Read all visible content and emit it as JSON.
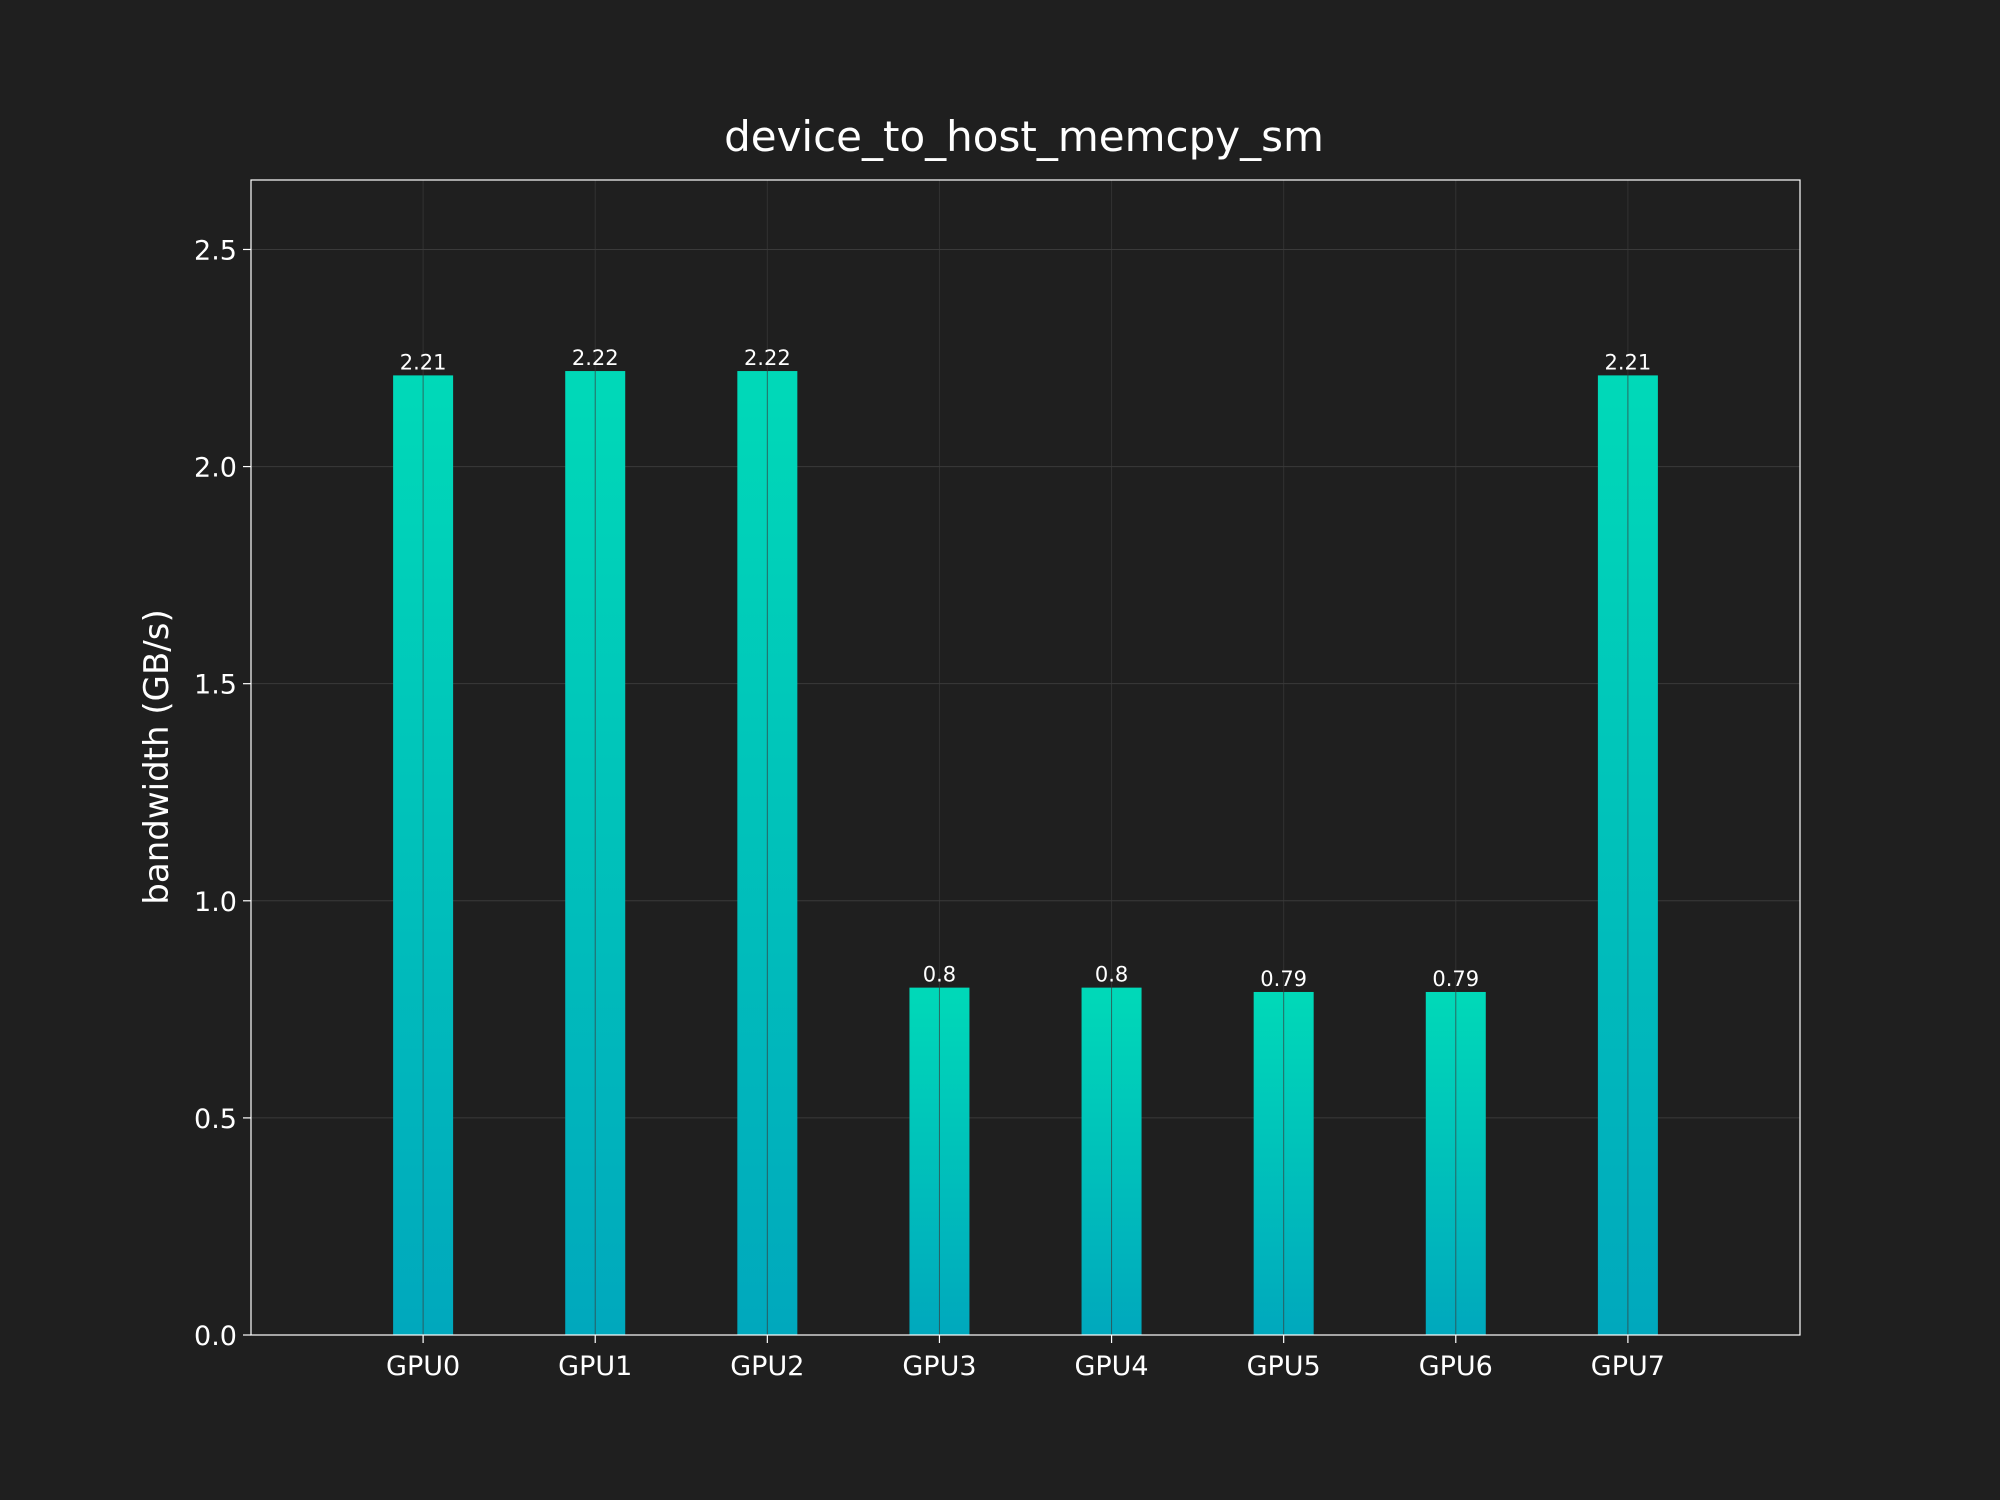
{
  "chart_data": {
    "type": "bar",
    "title": "device_to_host_memcpy_sm",
    "xlabel": "",
    "ylabel": "bandwidth (GB/s)",
    "categories": [
      "GPU0",
      "GPU1",
      "GPU2",
      "GPU3",
      "GPU4",
      "GPU5",
      "GPU6",
      "GPU7"
    ],
    "values": [
      2.21,
      2.22,
      2.22,
      0.8,
      0.8,
      0.79,
      0.79,
      2.21
    ],
    "data_labels": [
      "2.21",
      "2.22",
      "2.22",
      "0.8",
      "0.8",
      "0.79",
      "0.79",
      "2.21"
    ],
    "ylim": [
      0,
      2.66
    ],
    "yticks": [
      "0.0",
      "0.5",
      "1.0",
      "1.5",
      "2.0",
      "2.5"
    ],
    "grid": true,
    "legend": "none",
    "colors": {
      "background": "#1f1f1f",
      "bar_top": "#00d9b8",
      "bar_bottom": "#00a8bd",
      "grid": "#3a3a3a",
      "frame": "#ffffff",
      "text": "#ffffff"
    }
  }
}
